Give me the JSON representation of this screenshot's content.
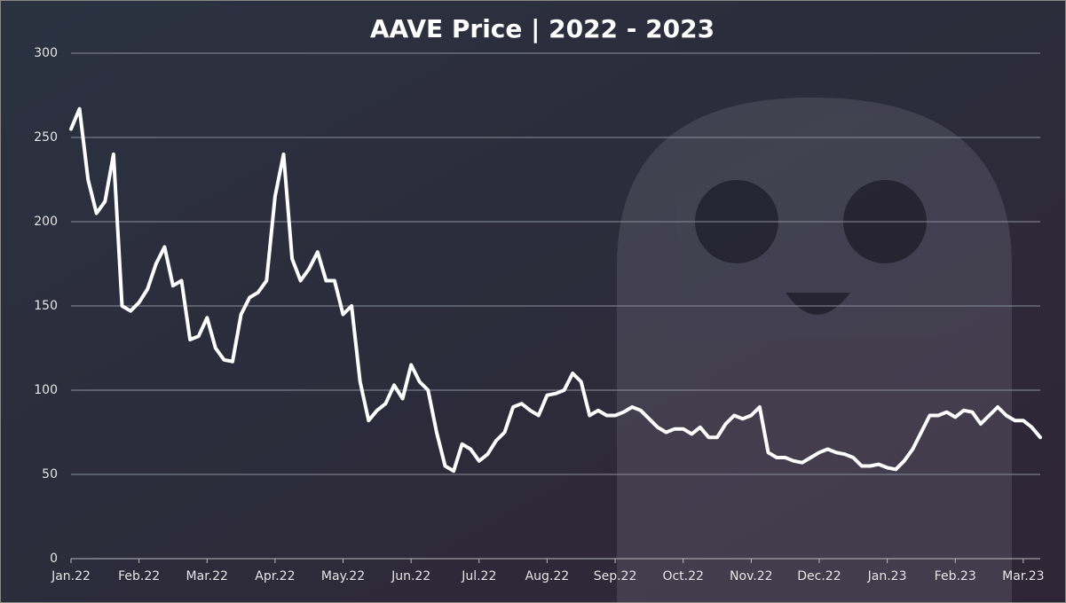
{
  "chart_data": {
    "type": "line",
    "title": "AAVE Price | 2022 - 2023",
    "x": [
      0,
      0.125,
      0.25,
      0.375,
      0.5,
      0.625,
      0.75,
      0.875,
      1,
      1.125,
      1.25,
      1.375,
      1.5,
      1.625,
      1.75,
      1.875,
      2,
      2.125,
      2.25,
      2.375,
      2.5,
      2.625,
      2.75,
      2.875,
      3,
      3.125,
      3.25,
      3.375,
      3.5,
      3.625,
      3.75,
      3.875,
      4,
      4.125,
      4.25,
      4.375,
      4.5,
      4.625,
      4.75,
      4.875,
      5,
      5.125,
      5.25,
      5.375,
      5.5,
      5.625,
      5.75,
      5.875,
      6,
      6.125,
      6.25,
      6.375,
      6.5,
      6.625,
      6.75,
      6.875,
      7,
      7.125,
      7.25,
      7.375,
      7.5,
      7.625,
      7.75,
      7.875,
      8,
      8.125,
      8.25,
      8.375,
      8.5,
      8.625,
      8.75,
      8.875,
      9,
      9.125,
      9.25,
      9.375,
      9.5,
      9.625,
      9.75,
      9.875,
      10,
      10.125,
      10.25,
      10.375,
      10.5,
      10.625,
      10.75,
      10.875,
      11,
      11.125,
      11.25,
      11.375,
      11.5,
      11.625,
      11.75,
      11.875,
      12,
      12.125,
      12.25,
      12.375,
      12.5,
      12.625,
      12.75,
      12.875,
      13,
      13.125,
      13.25,
      13.375,
      13.5,
      13.625,
      13.75,
      13.875,
      14,
      14.125,
      14.25
    ],
    "values": [
      255,
      267,
      225,
      205,
      212,
      240,
      150,
      147,
      152,
      160,
      175,
      185,
      162,
      165,
      130,
      132,
      143,
      125,
      118,
      117,
      145,
      155,
      158,
      165,
      215,
      240,
      178,
      165,
      172,
      182,
      165,
      165,
      145,
      150,
      105,
      82,
      88,
      92,
      103,
      95,
      115,
      105,
      100,
      75,
      55,
      52,
      68,
      65,
      58,
      62,
      70,
      75,
      90,
      92,
      88,
      85,
      97,
      98,
      100,
      110,
      105,
      85,
      88,
      85,
      85,
      87,
      90,
      88,
      83,
      78,
      75,
      77,
      77,
      74,
      78,
      72,
      72,
      80,
      85,
      83,
      85,
      90,
      63,
      60,
      60,
      58,
      57,
      60,
      63,
      65,
      63,
      62,
      60,
      55,
      55,
      56,
      54,
      53,
      58,
      65,
      75,
      85,
      85,
      87,
      84,
      88,
      87,
      80,
      85,
      90,
      85,
      82,
      82,
      78,
      72
    ],
    "color": "#ffffff",
    "xlim": [
      0,
      14.25
    ],
    "xticks": [
      {
        "value": 0,
        "label": "Jan.22"
      },
      {
        "value": 1,
        "label": "Feb.22"
      },
      {
        "value": 2,
        "label": "Mar.22"
      },
      {
        "value": 3,
        "label": "Apr.22"
      },
      {
        "value": 4,
        "label": "May.22"
      },
      {
        "value": 5,
        "label": "Jun.22"
      },
      {
        "value": 6,
        "label": "Jul.22"
      },
      {
        "value": 7,
        "label": "Aug.22"
      },
      {
        "value": 8,
        "label": "Sep.22"
      },
      {
        "value": 9,
        "label": "Oct.22"
      },
      {
        "value": 10,
        "label": "Nov.22"
      },
      {
        "value": 11,
        "label": "Dec.22"
      },
      {
        "value": 12,
        "label": "Jan.23"
      },
      {
        "value": 13,
        "label": "Feb.23"
      },
      {
        "value": 14,
        "label": "Mar.23"
      }
    ],
    "ylim": [
      0,
      300
    ],
    "yticks": [
      0,
      50,
      100,
      150,
      200,
      250,
      300
    ],
    "grid": true
  }
}
